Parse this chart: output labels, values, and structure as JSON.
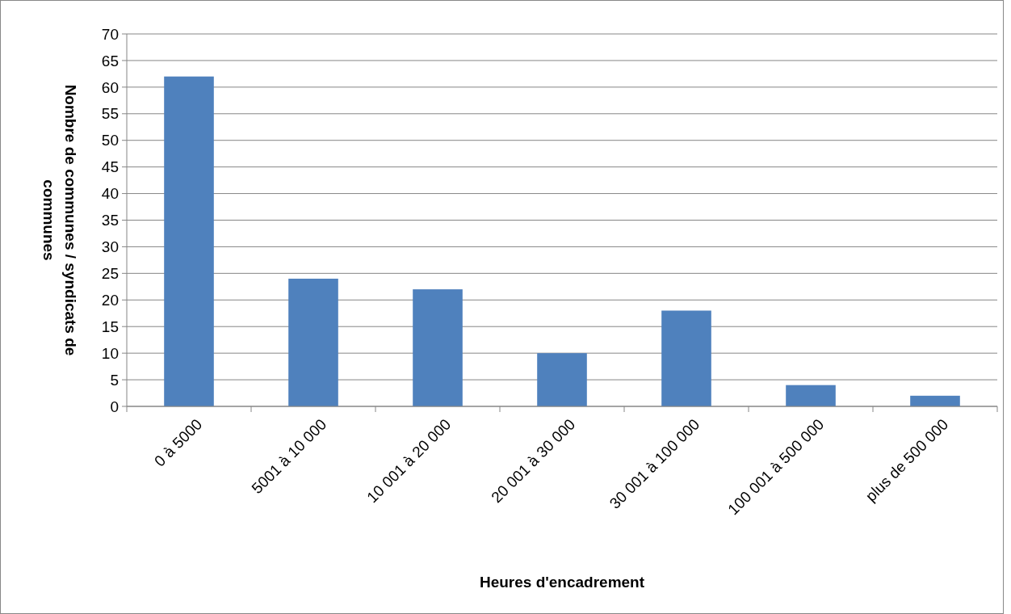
{
  "chart_data": {
    "type": "bar",
    "xlabel": "Heures d'encadrement",
    "ylabel": "Nombre de communes / syndicats de communes",
    "categories": [
      "0 à 5000",
      "5001 à 10 000",
      "10 001 à 20 000",
      "20 001 à 30 000",
      "30 001 à 100 000",
      "100 001 à 500 000",
      "plus de 500 000"
    ],
    "values": [
      62,
      24,
      22,
      10,
      18,
      4,
      2
    ],
    "color": "#4f81bd",
    "ylim": [
      0,
      70
    ],
    "yticks": [
      0,
      5,
      10,
      15,
      20,
      25,
      30,
      35,
      40,
      45,
      50,
      55,
      60,
      65,
      70
    ],
    "grid": "y"
  }
}
